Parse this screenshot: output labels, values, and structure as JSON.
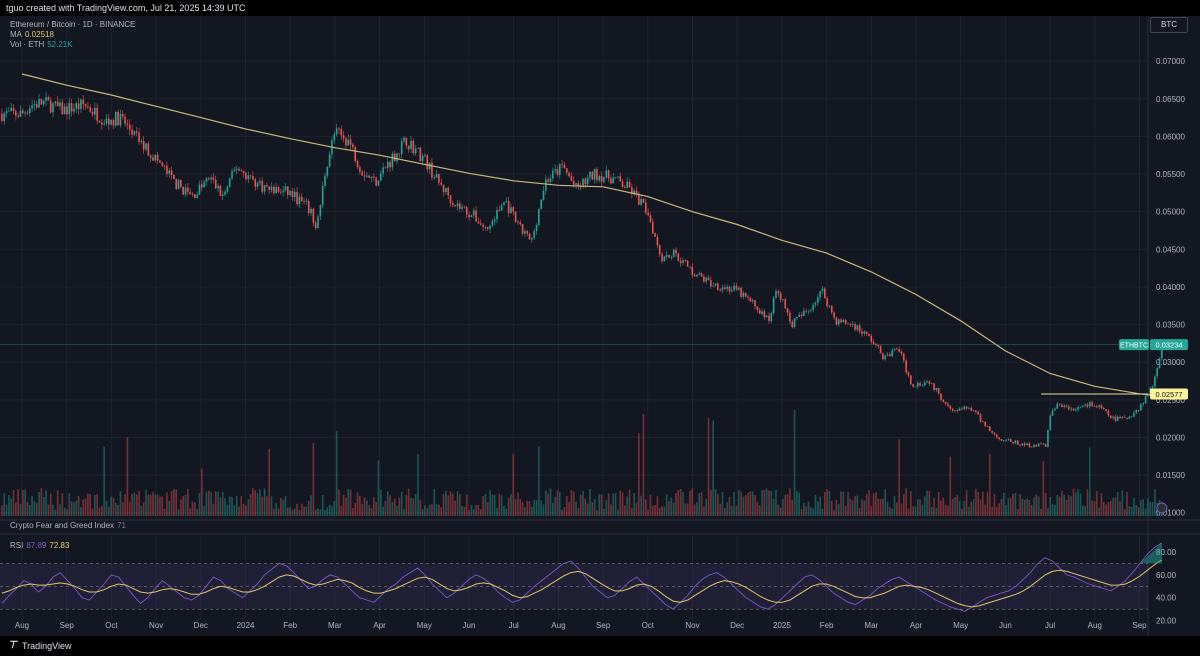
{
  "header": {
    "attribution": "tguo created with TradingView.com, Jul 21, 2025 14:39 UTC"
  },
  "legend": {
    "symbol": "Ethereum / Bitcoin · 1D · BINANCE",
    "ma_label": "MA",
    "ma_value": "0.02518",
    "vol_label": "Vol · ETH",
    "vol_value": "52.21K",
    "fng_label": "Crypto Fear and Greed Index",
    "fng_value": "71",
    "rsi_label": "RSI",
    "rsi_value1": "87.89",
    "rsi_value2": "72.83"
  },
  "scale_button": "BTC",
  "footer": {
    "brand": "TradingView",
    "logo": "tradingview-logo-icon"
  },
  "colors": {
    "up": "#26a69a",
    "down": "#ef5350",
    "ma": "#c9b97a",
    "rsi": "#7e57c2",
    "rsi_ma": "#e3c66b",
    "bg": "#131722"
  },
  "chart_data": {
    "type": "candlestick",
    "title": "Ethereum / Bitcoin · 1D · BINANCE",
    "price_axis": {
      "ticks": [
        "0.07000",
        "0.06500",
        "0.06000",
        "0.05500",
        "0.05000",
        "0.04500",
        "0.04000",
        "0.03500",
        "0.03000",
        "0.02500",
        "0.02000",
        "0.01500",
        "0.01000"
      ],
      "range": [
        0.0093,
        0.076
      ]
    },
    "time_axis": [
      "Aug",
      "Sep",
      "Oct",
      "Nov",
      "Dec",
      "2024",
      "Feb",
      "Mar",
      "Apr",
      "May",
      "Jun",
      "Jul",
      "Aug",
      "Sep",
      "Oct",
      "Nov",
      "Dec",
      "2025",
      "Feb",
      "Mar",
      "Apr",
      "May",
      "Jun",
      "Jul",
      "Aug",
      "Sep"
    ],
    "price_path": [
      [
        0,
        0.063
      ],
      [
        0.2,
        0.0642
      ],
      [
        0.5,
        0.0645
      ],
      [
        0.9,
        0.0635
      ],
      [
        1.4,
        0.0642
      ],
      [
        1.9,
        0.062
      ],
      [
        2.2,
        0.0625
      ],
      [
        2.6,
        0.0595
      ],
      [
        3,
        0.057
      ],
      [
        3.4,
        0.054
      ],
      [
        3.8,
        0.052
      ],
      [
        4.2,
        0.0545
      ],
      [
        4.5,
        0.052
      ],
      [
        4.8,
        0.056
      ],
      [
        5.2,
        0.054
      ],
      [
        5.5,
        0.053
      ],
      [
        6,
        0.0525
      ],
      [
        6.4,
        0.0505
      ],
      [
        6.6,
        0.048
      ],
      [
        6.8,
        0.056
      ],
      [
        7,
        0.0605
      ],
      [
        7.3,
        0.0595
      ],
      [
        7.6,
        0.0555
      ],
      [
        7.9,
        0.054
      ],
      [
        8.2,
        0.0565
      ],
      [
        8.6,
        0.0595
      ],
      [
        9,
        0.057
      ],
      [
        9.3,
        0.054
      ],
      [
        9.7,
        0.051
      ],
      [
        10.1,
        0.0495
      ],
      [
        10.4,
        0.0475
      ],
      [
        10.8,
        0.0515
      ],
      [
        11.1,
        0.048
      ],
      [
        11.4,
        0.046
      ],
      [
        11.7,
        0.054
      ],
      [
        12.1,
        0.056
      ],
      [
        12.4,
        0.053
      ],
      [
        12.8,
        0.055
      ],
      [
        13.2,
        0.0545
      ],
      [
        13.6,
        0.053
      ],
      [
        14,
        0.05
      ],
      [
        14.3,
        0.044
      ],
      [
        14.6,
        0.0445
      ],
      [
        15,
        0.042
      ],
      [
        15.4,
        0.0405
      ],
      [
        15.7,
        0.04
      ],
      [
        16,
        0.0395
      ],
      [
        16.4,
        0.0375
      ],
      [
        16.7,
        0.0355
      ],
      [
        16.9,
        0.04
      ],
      [
        17.2,
        0.035
      ],
      [
        17.6,
        0.037
      ],
      [
        17.9,
        0.0395
      ],
      [
        18.2,
        0.0355
      ],
      [
        18.6,
        0.035
      ],
      [
        19,
        0.033
      ],
      [
        19.3,
        0.0305
      ],
      [
        19.6,
        0.032
      ],
      [
        19.9,
        0.027
      ],
      [
        20.3,
        0.0275
      ],
      [
        20.6,
        0.025
      ],
      [
        20.9,
        0.0235
      ],
      [
        21.2,
        0.024
      ],
      [
        21.5,
        0.022
      ],
      [
        21.8,
        0.02
      ],
      [
        22.1,
        0.0195
      ],
      [
        22.4,
        0.019
      ],
      [
        22.7,
        0.019
      ],
      [
        22.9,
        0.019
      ],
      [
        23,
        0.023
      ],
      [
        23.2,
        0.0245
      ],
      [
        23.5,
        0.0235
      ],
      [
        23.8,
        0.0245
      ],
      [
        24.1,
        0.024
      ],
      [
        24.4,
        0.0225
      ],
      [
        24.7,
        0.0225
      ],
      [
        25,
        0.024
      ],
      [
        25.3,
        0.027
      ],
      [
        25.5,
        0.0323
      ]
    ],
    "ma_path": [
      [
        0,
        0.0683
      ],
      [
        1,
        0.0668
      ],
      [
        2,
        0.0655
      ],
      [
        3,
        0.064
      ],
      [
        4,
        0.0625
      ],
      [
        5,
        0.061
      ],
      [
        6,
        0.0597
      ],
      [
        7,
        0.0585
      ],
      [
        8,
        0.0575
      ],
      [
        9,
        0.0563
      ],
      [
        10,
        0.0551
      ],
      [
        11,
        0.0541
      ],
      [
        12,
        0.0535
      ],
      [
        13,
        0.0533
      ],
      [
        14,
        0.052
      ],
      [
        15,
        0.05
      ],
      [
        16,
        0.0483
      ],
      [
        17,
        0.0462
      ],
      [
        18,
        0.0445
      ],
      [
        19,
        0.042
      ],
      [
        20,
        0.039
      ],
      [
        21,
        0.0355
      ],
      [
        22,
        0.0315
      ],
      [
        23,
        0.0285
      ],
      [
        24,
        0.0268
      ],
      [
        25,
        0.0258
      ],
      [
        25.5,
        0.0255
      ]
    ],
    "current_price": {
      "label": "ETHBTC",
      "value": 0.03234,
      "text": "0.03234"
    },
    "horizontal_line": {
      "value": 0.02577,
      "text": "0.02577",
      "start_month": 22.8
    },
    "rsi": {
      "label": "RSI",
      "ticks": [
        "80.00",
        "60.00",
        "40.00",
        "20.00"
      ],
      "range": [
        10,
        94
      ],
      "bands": [
        70,
        50,
        30
      ],
      "values": [
        35,
        42,
        48,
        55,
        52,
        45,
        50,
        58,
        62,
        55,
        48,
        40,
        38,
        45,
        52,
        60,
        58,
        50,
        42,
        35,
        40,
        48,
        55,
        50,
        45,
        40,
        38,
        42,
        50,
        58,
        55,
        48,
        44,
        40,
        46,
        52,
        60,
        65,
        70,
        68,
        62,
        55,
        48,
        50,
        56,
        60,
        58,
        52,
        46,
        40,
        38,
        36,
        42,
        48,
        52,
        58,
        62,
        66,
        60,
        52,
        46,
        40,
        44,
        50,
        56,
        60,
        57,
        52,
        45,
        40,
        36,
        38,
        44,
        50,
        55,
        60,
        65,
        70,
        72,
        66,
        58,
        50,
        45,
        40,
        42,
        48,
        54,
        58,
        52,
        46,
        40,
        34,
        30,
        36,
        42,
        50,
        56,
        60,
        62,
        58,
        52,
        46,
        40,
        36,
        32,
        30,
        34,
        40,
        46,
        52,
        58,
        60,
        56,
        50,
        44,
        40,
        36,
        34,
        38,
        42,
        48,
        52,
        56,
        58,
        54,
        50,
        46,
        42,
        38,
        35,
        32,
        30,
        28,
        32,
        36,
        40,
        42,
        44,
        46,
        50,
        56,
        62,
        70,
        75,
        72,
        66,
        60,
        58,
        55,
        52,
        50,
        48,
        46,
        50,
        55,
        62,
        70,
        78,
        84,
        88
      ],
      "ma": [
        44,
        46,
        49,
        51,
        52,
        51,
        51,
        52,
        53,
        52,
        50,
        47,
        45,
        45,
        47,
        50,
        52,
        51,
        48,
        45,
        44,
        45,
        47,
        48,
        47,
        45,
        43,
        43,
        45,
        48,
        50,
        49,
        47,
        45,
        45,
        47,
        50,
        54,
        58,
        60,
        59,
        56,
        53,
        51,
        52,
        54,
        56,
        55,
        53,
        49,
        46,
        44,
        44,
        46,
        48,
        51,
        54,
        57,
        58,
        56,
        52,
        48,
        46,
        47,
        49,
        52,
        53,
        52,
        49,
        46,
        42,
        40,
        41,
        44,
        47,
        51,
        55,
        59,
        62,
        63,
        61,
        57,
        53,
        49,
        46,
        46,
        48,
        51,
        52,
        50,
        46,
        41,
        37,
        36,
        38,
        42,
        46,
        50,
        53,
        55,
        54,
        52,
        49,
        45,
        41,
        38,
        36,
        36,
        38,
        42,
        46,
        50,
        52,
        52,
        50,
        47,
        44,
        41,
        40,
        40,
        42,
        44,
        47,
        50,
        51,
        50,
        49,
        47,
        44,
        41,
        38,
        35,
        33,
        32,
        33,
        35,
        37,
        39,
        41,
        43,
        46,
        50,
        55,
        60,
        63,
        64,
        63,
        61,
        59,
        57,
        55,
        53,
        51,
        51,
        52,
        55,
        59,
        64,
        69,
        73
      ]
    },
    "volume_note": "Vol · ETH"
  }
}
